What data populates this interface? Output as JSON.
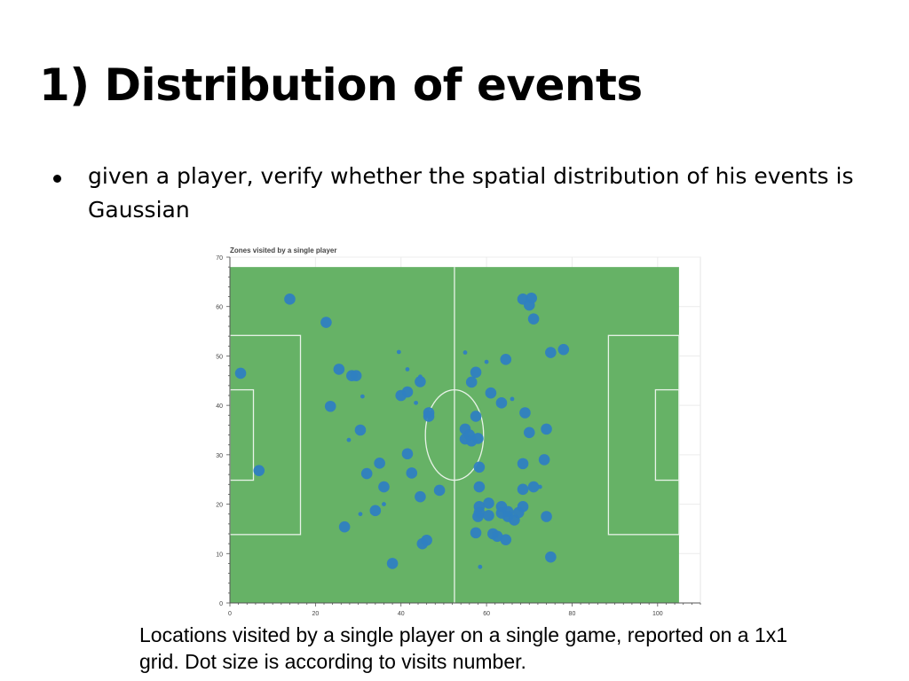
{
  "slide": {
    "title": "1) Distribution of events",
    "bullet": "given a player, verify whether the spatial distribution of his events is Gaussian",
    "caption": "Locations visited by a single player on a single game, reported on a 1x1 grid. Dot size is according to visits number."
  },
  "colors": {
    "pitch": "#66b266",
    "dot": "#2f7fc1",
    "lines": "#e8f3e8",
    "axis": "#555555"
  },
  "chart_data": {
    "type": "scatter",
    "title": "Zones visited by a single player",
    "xlim": [
      0,
      110
    ],
    "ylim": [
      0,
      70
    ],
    "xticks": [
      0,
      20,
      40,
      60,
      80,
      100
    ],
    "yticks": [
      0,
      10,
      20,
      30,
      40,
      50,
      60,
      70
    ],
    "pitch": {
      "length": 105,
      "width": 68
    },
    "points": [
      {
        "x": 14,
        "y": 61.5,
        "size": 3
      },
      {
        "x": 22.5,
        "y": 56.8,
        "size": 3
      },
      {
        "x": 2.5,
        "y": 46.5,
        "size": 3
      },
      {
        "x": 6.8,
        "y": 26.8,
        "size": 3
      },
      {
        "x": 25.5,
        "y": 47.3,
        "size": 3
      },
      {
        "x": 28.5,
        "y": 46,
        "size": 3
      },
      {
        "x": 29.5,
        "y": 46,
        "size": 3
      },
      {
        "x": 23.5,
        "y": 39.8,
        "size": 3
      },
      {
        "x": 31,
        "y": 41.8,
        "size": 1
      },
      {
        "x": 30.5,
        "y": 35,
        "size": 3
      },
      {
        "x": 27.8,
        "y": 33,
        "size": 1
      },
      {
        "x": 35,
        "y": 28.3,
        "size": 3
      },
      {
        "x": 32,
        "y": 26.2,
        "size": 3
      },
      {
        "x": 36,
        "y": 23.5,
        "size": 3
      },
      {
        "x": 30.5,
        "y": 18,
        "size": 1
      },
      {
        "x": 34,
        "y": 18.7,
        "size": 3
      },
      {
        "x": 36,
        "y": 20,
        "size": 1
      },
      {
        "x": 26.8,
        "y": 15.4,
        "size": 3
      },
      {
        "x": 39.5,
        "y": 50.8,
        "size": 1
      },
      {
        "x": 41.5,
        "y": 47.3,
        "size": 1
      },
      {
        "x": 44.5,
        "y": 45.8,
        "size": 1
      },
      {
        "x": 44.5,
        "y": 44.8,
        "size": 3
      },
      {
        "x": 41.5,
        "y": 42.7,
        "size": 3
      },
      {
        "x": 40,
        "y": 42,
        "size": 3
      },
      {
        "x": 43.5,
        "y": 40.5,
        "size": 1
      },
      {
        "x": 46.5,
        "y": 38.5,
        "size": 3
      },
      {
        "x": 46.5,
        "y": 37.8,
        "size": 3
      },
      {
        "x": 41.5,
        "y": 30.2,
        "size": 3
      },
      {
        "x": 42.5,
        "y": 26.3,
        "size": 3
      },
      {
        "x": 44.5,
        "y": 21.5,
        "size": 3
      },
      {
        "x": 49,
        "y": 22.8,
        "size": 3
      },
      {
        "x": 38,
        "y": 8,
        "size": 3
      },
      {
        "x": 45,
        "y": 12,
        "size": 3
      },
      {
        "x": 46,
        "y": 12.7,
        "size": 3
      },
      {
        "x": 55,
        "y": 50.7,
        "size": 1
      },
      {
        "x": 57.5,
        "y": 46.7,
        "size": 3
      },
      {
        "x": 56.5,
        "y": 44.7,
        "size": 3
      },
      {
        "x": 60,
        "y": 48.8,
        "size": 1
      },
      {
        "x": 64.5,
        "y": 49.3,
        "size": 3
      },
      {
        "x": 61,
        "y": 42.5,
        "size": 3
      },
      {
        "x": 63.5,
        "y": 40.5,
        "size": 3
      },
      {
        "x": 66,
        "y": 41.3,
        "size": 1
      },
      {
        "x": 57.5,
        "y": 37.8,
        "size": 3
      },
      {
        "x": 55,
        "y": 35.2,
        "size": 3
      },
      {
        "x": 56,
        "y": 34,
        "size": 3
      },
      {
        "x": 55,
        "y": 33.2,
        "size": 3
      },
      {
        "x": 56.5,
        "y": 32.8,
        "size": 3
      },
      {
        "x": 58,
        "y": 33.3,
        "size": 3
      },
      {
        "x": 58.3,
        "y": 27.5,
        "size": 3
      },
      {
        "x": 58.3,
        "y": 23.5,
        "size": 3
      },
      {
        "x": 58.3,
        "y": 19.5,
        "size": 3
      },
      {
        "x": 58.3,
        "y": 18.3,
        "size": 3
      },
      {
        "x": 58,
        "y": 17.5,
        "size": 3
      },
      {
        "x": 60.5,
        "y": 20.2,
        "size": 3
      },
      {
        "x": 60.5,
        "y": 17.7,
        "size": 3
      },
      {
        "x": 63.5,
        "y": 19.5,
        "size": 3
      },
      {
        "x": 63.5,
        "y": 18.2,
        "size": 3
      },
      {
        "x": 65,
        "y": 18.5,
        "size": 3
      },
      {
        "x": 65,
        "y": 17.5,
        "size": 3
      },
      {
        "x": 66.5,
        "y": 16.8,
        "size": 3
      },
      {
        "x": 67.5,
        "y": 18.3,
        "size": 3
      },
      {
        "x": 68.5,
        "y": 19.5,
        "size": 3
      },
      {
        "x": 61.5,
        "y": 14,
        "size": 3
      },
      {
        "x": 62.5,
        "y": 13.5,
        "size": 3
      },
      {
        "x": 64.5,
        "y": 12.8,
        "size": 3
      },
      {
        "x": 57.5,
        "y": 14.2,
        "size": 3
      },
      {
        "x": 58.5,
        "y": 7.3,
        "size": 1
      },
      {
        "x": 68.5,
        "y": 61.5,
        "size": 3
      },
      {
        "x": 70.5,
        "y": 61.7,
        "size": 3
      },
      {
        "x": 70,
        "y": 60.3,
        "size": 3
      },
      {
        "x": 71,
        "y": 57.5,
        "size": 3
      },
      {
        "x": 75,
        "y": 50.7,
        "size": 3
      },
      {
        "x": 78,
        "y": 51.3,
        "size": 3
      },
      {
        "x": 69,
        "y": 38.5,
        "size": 3
      },
      {
        "x": 70,
        "y": 34.5,
        "size": 3
      },
      {
        "x": 74,
        "y": 35.2,
        "size": 3
      },
      {
        "x": 68.5,
        "y": 28.2,
        "size": 3
      },
      {
        "x": 73.5,
        "y": 29,
        "size": 3
      },
      {
        "x": 68.5,
        "y": 23,
        "size": 3
      },
      {
        "x": 71,
        "y": 23.5,
        "size": 3
      },
      {
        "x": 72.5,
        "y": 23.5,
        "size": 1
      },
      {
        "x": 74,
        "y": 17.5,
        "size": 3
      },
      {
        "x": 75,
        "y": 9.3,
        "size": 3
      }
    ]
  }
}
